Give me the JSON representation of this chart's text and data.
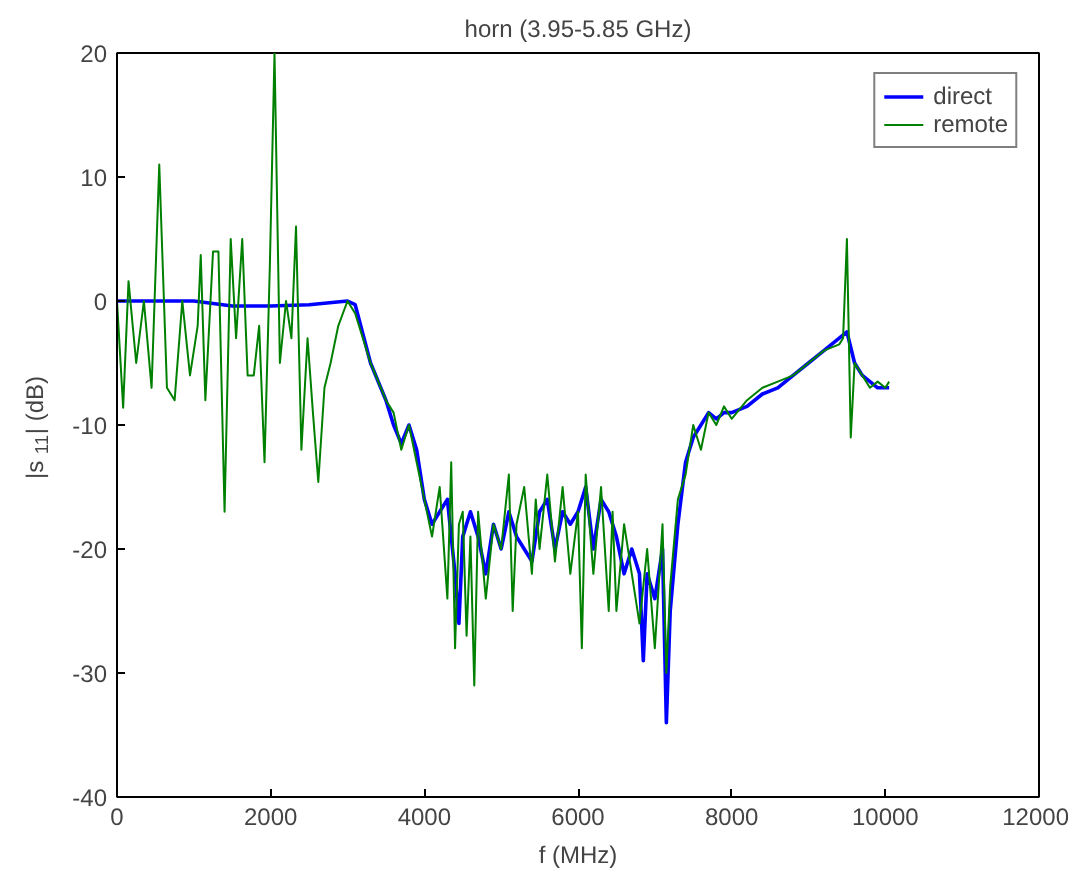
{
  "chart_data": {
    "type": "line",
    "title": "horn (3.95-5.85 GHz)",
    "xlabel": "f (MHz)",
    "ylabel": "|s$_{11}$| (dB)",
    "xlim": [
      0,
      12000
    ],
    "ylim": [
      -40,
      20
    ],
    "xticks": [
      0,
      2000,
      4000,
      6000,
      8000,
      10000,
      12000
    ],
    "yticks": [
      -40,
      -30,
      -20,
      -10,
      0,
      10,
      20
    ],
    "legend": "top right",
    "grid": false,
    "series": [
      {
        "name": "direct",
        "color": "#0000ff",
        "x": [
          0,
          1000,
          1500,
          2000,
          2500,
          3000,
          3100,
          3300,
          3500,
          3600,
          3700,
          3800,
          3900,
          4000,
          4100,
          4200,
          4300,
          4400,
          4450,
          4500,
          4600,
          4700,
          4800,
          4900,
          5000,
          5100,
          5200,
          5300,
          5400,
          5500,
          5600,
          5700,
          5800,
          5900,
          6000,
          6100,
          6200,
          6300,
          6400,
          6500,
          6600,
          6700,
          6800,
          6850,
          6900,
          7000,
          7100,
          7150,
          7200,
          7300,
          7400,
          7500,
          7600,
          7700,
          7800,
          7900,
          8000,
          8200,
          8400,
          8600,
          8800,
          9000,
          9200,
          9400,
          9500,
          9600,
          9700,
          9800,
          9900,
          10000,
          10050
        ],
        "values": [
          0,
          0,
          -0.4,
          -0.4,
          -0.3,
          0,
          -0.3,
          -5,
          -8,
          -10,
          -11.5,
          -10,
          -12,
          -16,
          -18,
          -17,
          -16,
          -22,
          -26,
          -19,
          -17,
          -19,
          -22,
          -18,
          -20,
          -17,
          -19,
          -20,
          -21,
          -17,
          -16,
          -20,
          -17,
          -18,
          -17,
          -15,
          -20,
          -16,
          -17,
          -19,
          -22,
          -20,
          -22,
          -29,
          -22,
          -24,
          -20,
          -34,
          -25,
          -18,
          -13,
          -11,
          -10,
          -9,
          -9.5,
          -9,
          -9,
          -8.5,
          -7.5,
          -7,
          -6,
          -5,
          -4,
          -3,
          -2.5,
          -5,
          -6,
          -6.5,
          -7,
          -7,
          -7
        ]
      },
      {
        "name": "remote",
        "color": "#008000",
        "x": [
          0,
          80,
          150,
          250,
          350,
          450,
          550,
          650,
          750,
          850,
          950,
          1050,
          1090,
          1150,
          1250,
          1320,
          1400,
          1480,
          1550,
          1630,
          1700,
          1780,
          1850,
          1920,
          1990,
          2050,
          2120,
          2200,
          2270,
          2330,
          2400,
          2480,
          2550,
          2620,
          2700,
          2780,
          2880,
          3000,
          3100,
          3300,
          3500,
          3600,
          3700,
          3800,
          3900,
          4000,
          4100,
          4200,
          4300,
          4350,
          4400,
          4450,
          4500,
          4550,
          4600,
          4650,
          4700,
          4800,
          4900,
          5000,
          5100,
          5150,
          5200,
          5300,
          5400,
          5450,
          5500,
          5600,
          5700,
          5800,
          5900,
          6000,
          6050,
          6100,
          6200,
          6300,
          6400,
          6450,
          6500,
          6600,
          6700,
          6800,
          6900,
          7000,
          7100,
          7150,
          7200,
          7300,
          7400,
          7500,
          7600,
          7700,
          7800,
          7900,
          8000,
          8200,
          8400,
          8600,
          8800,
          9000,
          9200,
          9400,
          9450,
          9500,
          9550,
          9600,
          9700,
          9800,
          9900,
          10000,
          10050
        ],
        "values": [
          0,
          -8.6,
          1.6,
          -5,
          0,
          -7,
          11,
          -7,
          -8,
          0,
          -6,
          -2,
          3.7,
          -8,
          4,
          4,
          -17,
          5,
          -3,
          5,
          -6,
          -6,
          -2,
          -13,
          3,
          20,
          -5,
          0,
          -3,
          6,
          -12,
          -3,
          -9,
          -14.6,
          -7,
          -5,
          -2,
          0,
          -1,
          -5,
          -8,
          -9,
          -12,
          -10,
          -13,
          -16,
          -19,
          -15,
          -24,
          -13,
          -28,
          -18,
          -17,
          -27,
          -19,
          -31,
          -17,
          -24,
          -18,
          -20,
          -14,
          -25,
          -18,
          -15,
          -22,
          -16,
          -20,
          -14,
          -21,
          -15,
          -22,
          -17,
          -28,
          -14,
          -22,
          -15,
          -25,
          -17,
          -25,
          -18,
          -22,
          -26,
          -20,
          -28,
          -18,
          -30,
          -23,
          -16,
          -14,
          -10,
          -12,
          -9,
          -10,
          -8.5,
          -9.5,
          -8,
          -7,
          -6.5,
          -6,
          -5,
          -4,
          -3.5,
          -3,
          5,
          -11,
          -5,
          -6,
          -7,
          -6.5,
          -7,
          -6.5
        ]
      }
    ]
  }
}
